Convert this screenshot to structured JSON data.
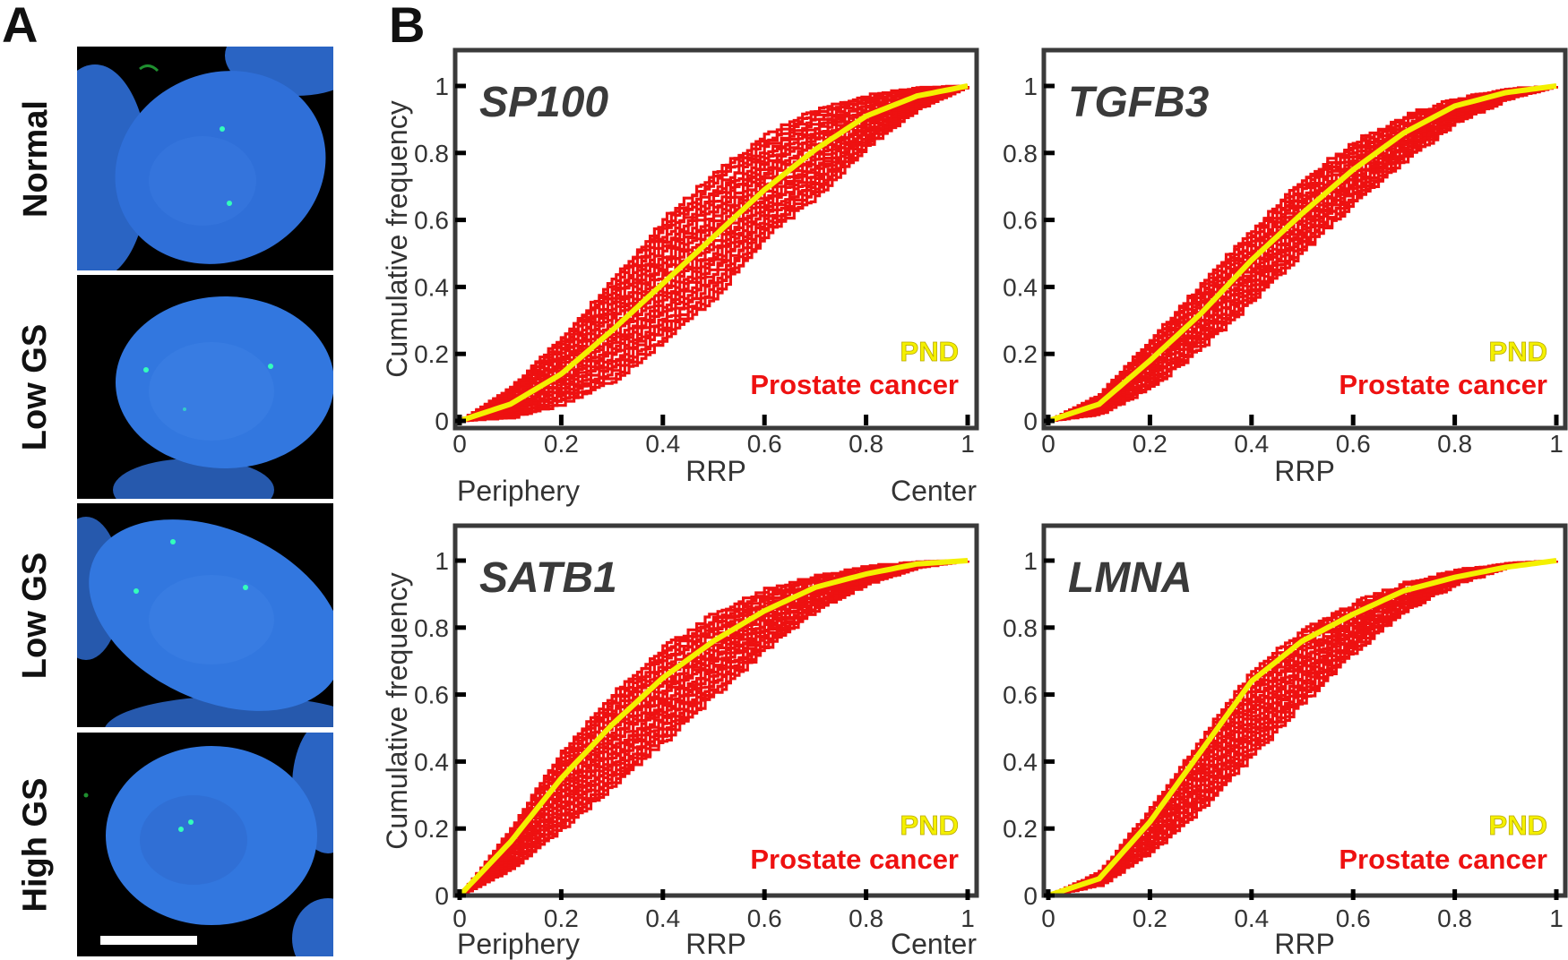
{
  "panels": {
    "a": "A",
    "b": "B"
  },
  "micrographs": [
    {
      "label": "Normal"
    },
    {
      "label": "Low GS"
    },
    {
      "label": "Low GS"
    },
    {
      "label": "High GS"
    }
  ],
  "colors": {
    "cancer": "#ee1111",
    "pnd": "#f4f000",
    "pnd_stroke": "#b8a800",
    "frame": "#3a3a3a",
    "nucleus": "#2f6fd8",
    "signal": "#33ffbb"
  },
  "chart_data": [
    {
      "type": "line",
      "title": "SP100",
      "xlabel": "RRP",
      "ylabel": "Cumulative frequency",
      "x_end_labels": [
        "Periphery",
        "Center"
      ],
      "xlim": [
        0,
        1
      ],
      "ylim": [
        0,
        1
      ],
      "xticks": [
        "0",
        "0.2",
        "0.4",
        "0.6",
        "0.8",
        "1"
      ],
      "yticks": [
        "0",
        "0.2",
        "0.4",
        "0.6",
        "0.8",
        "1"
      ],
      "legend": [
        "PND",
        "Prostate cancer"
      ],
      "series": [
        {
          "name": "PND",
          "x": [
            0,
            0.1,
            0.2,
            0.3,
            0.4,
            0.5,
            0.6,
            0.7,
            0.8,
            0.9,
            1
          ],
          "y": [
            0,
            0.05,
            0.14,
            0.27,
            0.41,
            0.55,
            0.69,
            0.81,
            0.91,
            0.97,
            1
          ]
        },
        {
          "name": "Prostate cancer (envelope low)",
          "x": [
            0,
            0.1,
            0.2,
            0.3,
            0.4,
            0.5,
            0.6,
            0.7,
            0.8,
            0.9,
            1
          ],
          "y": [
            0,
            0.01,
            0.05,
            0.12,
            0.24,
            0.37,
            0.55,
            0.67,
            0.82,
            0.93,
            1
          ]
        },
        {
          "name": "Prostate cancer (envelope high)",
          "x": [
            0,
            0.1,
            0.2,
            0.3,
            0.4,
            0.5,
            0.6,
            0.7,
            0.8,
            0.9,
            1
          ],
          "y": [
            0,
            0.1,
            0.25,
            0.42,
            0.6,
            0.74,
            0.85,
            0.93,
            0.97,
            0.995,
            1
          ]
        }
      ]
    },
    {
      "type": "line",
      "title": "TGFB3",
      "xlabel": "RRP",
      "ylabel": "",
      "x_end_labels": [],
      "xlim": [
        0,
        1
      ],
      "ylim": [
        0,
        1
      ],
      "xticks": [
        "0",
        "0.2",
        "0.4",
        "0.6",
        "0.8",
        "1"
      ],
      "yticks": [
        "0",
        "0.2",
        "0.4",
        "0.6",
        "0.8",
        "1"
      ],
      "legend": [
        "PND",
        "Prostate cancer"
      ],
      "series": [
        {
          "name": "PND",
          "x": [
            0,
            0.1,
            0.2,
            0.3,
            0.4,
            0.5,
            0.6,
            0.7,
            0.8,
            0.9,
            1
          ],
          "y": [
            0,
            0.05,
            0.18,
            0.32,
            0.48,
            0.62,
            0.75,
            0.86,
            0.94,
            0.98,
            1
          ]
        },
        {
          "name": "Prostate cancer (envelope low)",
          "x": [
            0,
            0.1,
            0.2,
            0.3,
            0.4,
            0.5,
            0.6,
            0.7,
            0.8,
            0.9,
            1
          ],
          "y": [
            0,
            0.02,
            0.1,
            0.22,
            0.36,
            0.51,
            0.65,
            0.78,
            0.89,
            0.96,
            1
          ]
        },
        {
          "name": "Prostate cancer (envelope high)",
          "x": [
            0,
            0.1,
            0.2,
            0.3,
            0.4,
            0.5,
            0.6,
            0.7,
            0.8,
            0.9,
            1
          ],
          "y": [
            0,
            0.08,
            0.24,
            0.41,
            0.57,
            0.72,
            0.83,
            0.91,
            0.96,
            0.99,
            1
          ]
        }
      ]
    },
    {
      "type": "line",
      "title": "SATB1",
      "xlabel": "RRP",
      "ylabel": "Cumulative frequency",
      "x_end_labels": [
        "Periphery",
        "Center"
      ],
      "xlim": [
        0,
        1
      ],
      "ylim": [
        0,
        1
      ],
      "xticks": [
        "0",
        "0.2",
        "0.4",
        "0.6",
        "0.8",
        "1"
      ],
      "yticks": [
        "0",
        "0.2",
        "0.4",
        "0.6",
        "0.8",
        "1"
      ],
      "legend": [
        "PND",
        "Prostate cancer"
      ],
      "series": [
        {
          "name": "PND",
          "x": [
            0,
            0.1,
            0.2,
            0.3,
            0.4,
            0.5,
            0.6,
            0.7,
            0.8,
            0.9,
            1
          ],
          "y": [
            0,
            0.16,
            0.35,
            0.51,
            0.65,
            0.76,
            0.85,
            0.92,
            0.96,
            0.99,
            1
          ]
        },
        {
          "name": "Prostate cancer (envelope low)",
          "x": [
            0,
            0.1,
            0.2,
            0.3,
            0.4,
            0.5,
            0.6,
            0.7,
            0.8,
            0.9,
            1
          ],
          "y": [
            0,
            0.08,
            0.2,
            0.33,
            0.46,
            0.6,
            0.74,
            0.85,
            0.93,
            0.98,
            1
          ]
        },
        {
          "name": "Prostate cancer (envelope high)",
          "x": [
            0,
            0.1,
            0.2,
            0.3,
            0.4,
            0.5,
            0.6,
            0.7,
            0.8,
            0.9,
            1
          ],
          "y": [
            0,
            0.2,
            0.43,
            0.6,
            0.74,
            0.84,
            0.91,
            0.95,
            0.98,
            0.995,
            1
          ]
        }
      ]
    },
    {
      "type": "line",
      "title": "LMNA",
      "xlabel": "RRP",
      "ylabel": "",
      "x_end_labels": [],
      "xlim": [
        0,
        1
      ],
      "ylim": [
        0,
        1
      ],
      "xticks": [
        "0",
        "0.2",
        "0.4",
        "0.6",
        "0.8",
        "1"
      ],
      "yticks": [
        "0",
        "0.2",
        "0.4",
        "0.6",
        "0.8",
        "1"
      ],
      "legend": [
        "PND",
        "Prostate cancer"
      ],
      "series": [
        {
          "name": "PND",
          "x": [
            0,
            0.1,
            0.2,
            0.3,
            0.4,
            0.5,
            0.6,
            0.7,
            0.8,
            0.9,
            1
          ],
          "y": [
            0,
            0.05,
            0.22,
            0.43,
            0.64,
            0.76,
            0.84,
            0.91,
            0.95,
            0.98,
            1
          ]
        },
        {
          "name": "Prostate cancer (envelope low)",
          "x": [
            0,
            0.1,
            0.2,
            0.3,
            0.4,
            0.5,
            0.6,
            0.7,
            0.8,
            0.9,
            1
          ],
          "y": [
            0,
            0.03,
            0.13,
            0.26,
            0.42,
            0.58,
            0.73,
            0.85,
            0.93,
            0.98,
            1
          ]
        },
        {
          "name": "Prostate cancer (envelope high)",
          "x": [
            0,
            0.1,
            0.2,
            0.3,
            0.4,
            0.5,
            0.6,
            0.7,
            0.8,
            0.9,
            1
          ],
          "y": [
            0,
            0.07,
            0.26,
            0.47,
            0.67,
            0.79,
            0.87,
            0.93,
            0.97,
            0.99,
            1
          ]
        }
      ]
    }
  ]
}
